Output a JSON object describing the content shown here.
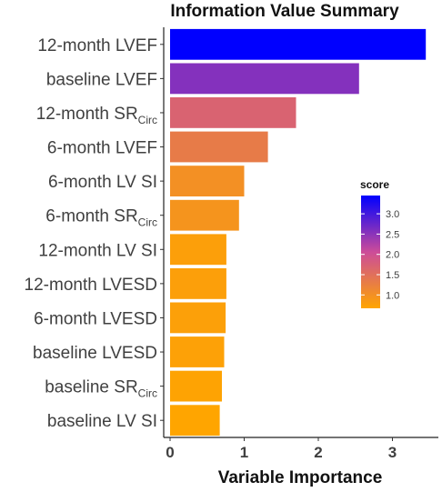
{
  "chart_data": {
    "type": "bar",
    "orientation": "horizontal",
    "title": "Information Value Summary",
    "xlabel": "Variable Importance",
    "ylabel": "",
    "xlim": [
      0,
      3.5
    ],
    "x_ticks": [
      0,
      1,
      2,
      3
    ],
    "grid": false,
    "categories": [
      {
        "main": "12-month LVEF",
        "sub": ""
      },
      {
        "main": "baseline LVEF",
        "sub": ""
      },
      {
        "main": "12-month SR",
        "sub": "Circ"
      },
      {
        "main": "6-month LVEF",
        "sub": ""
      },
      {
        "main": "6-month LV SI",
        "sub": ""
      },
      {
        "main": "6-month SR",
        "sub": "Circ"
      },
      {
        "main": "12-month LV SI",
        "sub": ""
      },
      {
        "main": "12-month LVESD",
        "sub": ""
      },
      {
        "main": "6-month LVESD",
        "sub": ""
      },
      {
        "main": "baseline LVESD",
        "sub": ""
      },
      {
        "main": "baseline SR",
        "sub": "Circ"
      },
      {
        "main": "baseline LV SI",
        "sub": ""
      }
    ],
    "values": [
      3.45,
      2.55,
      1.7,
      1.32,
      1.0,
      0.93,
      0.76,
      0.76,
      0.75,
      0.73,
      0.7,
      0.67
    ],
    "legend": {
      "title": "score",
      "position": "right",
      "ticks": [
        "1.0",
        "1.5",
        "2.0",
        "2.5",
        "3.0"
      ],
      "tick_values": [
        1.0,
        1.5,
        2.0,
        2.5,
        3.0
      ],
      "range": [
        0.67,
        3.45
      ],
      "color_low": "#FFA500",
      "color_mid": "#CC4C99",
      "color_high": "#0000FF"
    }
  }
}
